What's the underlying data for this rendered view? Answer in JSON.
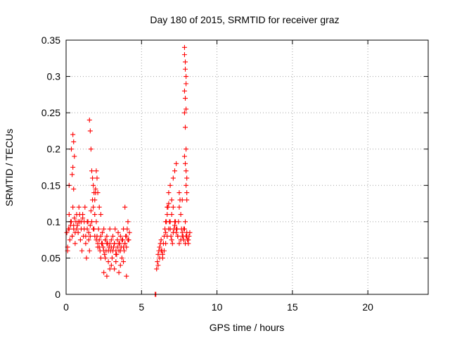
{
  "chart_data": {
    "type": "scatter",
    "title": "Day 180 of 2015, SRMTID for receiver graz",
    "xlabel": "GPS time / hours",
    "ylabel": "SRMTID / TECUs",
    "xlim": [
      0,
      24
    ],
    "ylim": [
      0,
      0.35
    ],
    "xticks": [
      0,
      5,
      10,
      15,
      20
    ],
    "xtick_labels": [
      "0",
      "5",
      "10",
      "15",
      "20"
    ],
    "yticks": [
      0,
      0.05,
      0.1,
      0.15,
      0.2,
      0.25,
      0.3,
      0.35
    ],
    "ytick_labels": [
      "0",
      "0.05",
      "0.1",
      "0.15",
      "0.2",
      "0.25",
      "0.3",
      "0.35"
    ],
    "grid": true,
    "marker": "plus",
    "color": "#ff0000",
    "series": [
      {
        "name": "SRMTID",
        "x": [
          0.05,
          0.1,
          0.15,
          0.2,
          0.25,
          0.3,
          0.35,
          0.4,
          0.45,
          0.5,
          0.55,
          0.6,
          0.65,
          0.7,
          0.75,
          0.8,
          0.85,
          0.9,
          0.95,
          1.0,
          1.05,
          1.1,
          1.15,
          1.2,
          1.25,
          1.3,
          1.35,
          1.4,
          1.45,
          1.5,
          1.55,
          1.6,
          1.65,
          1.7,
          1.75,
          1.8,
          1.85,
          1.9,
          1.95,
          2.0,
          2.05,
          2.1,
          2.15,
          2.2,
          2.25,
          2.3,
          2.35,
          2.4,
          2.45,
          2.5,
          2.55,
          2.6,
          2.65,
          2.7,
          2.75,
          2.8,
          2.85,
          2.9,
          2.95,
          3.0,
          3.05,
          3.1,
          3.15,
          3.2,
          3.25,
          3.3,
          3.35,
          3.4,
          3.45,
          3.5,
          3.55,
          3.6,
          3.65,
          3.7,
          3.75,
          3.8,
          3.85,
          3.9,
          3.95,
          4.0,
          4.05,
          4.1,
          4.15,
          4.2,
          0.1,
          0.2,
          0.3,
          0.4,
          0.5,
          0.6,
          0.7,
          0.8,
          0.9,
          1.0,
          1.1,
          1.2,
          1.3,
          1.4,
          1.5,
          1.6,
          1.7,
          1.8,
          1.9,
          2.0,
          2.1,
          2.2,
          2.3,
          2.4,
          2.5,
          2.6,
          2.7,
          2.8,
          2.9,
          3.0,
          3.1,
          3.2,
          3.3,
          3.4,
          3.5,
          3.6,
          3.7,
          3.8,
          3.9,
          4.0,
          4.1,
          0.2,
          0.35,
          0.45,
          0.5,
          0.55,
          1.55,
          1.6,
          1.65,
          1.7,
          1.75,
          1.8,
          1.85,
          1.9,
          1.95,
          2.0,
          2.05,
          2.1,
          2.2,
          2.3,
          0.4,
          0.45,
          0.5,
          2.5,
          2.7,
          3.0,
          3.2,
          3.5,
          3.8,
          4.0,
          2.6,
          2.9,
          3.3,
          3.6,
          3.9,
          5.9,
          5.95,
          6.0,
          6.05,
          6.1,
          6.15,
          6.2,
          6.25,
          6.3,
          6.35,
          6.4,
          6.45,
          6.5,
          6.55,
          6.6,
          6.65,
          6.7,
          6.75,
          6.8,
          6.85,
          6.9,
          6.95,
          7.0,
          7.05,
          7.1,
          7.15,
          7.2,
          7.25,
          7.3,
          7.35,
          7.4,
          7.45,
          7.5,
          7.55,
          7.6,
          7.65,
          7.7,
          7.75,
          7.8,
          7.85,
          7.9,
          7.95,
          8.0,
          8.05,
          8.1,
          8.15,
          8.2,
          6.1,
          6.2,
          6.3,
          6.4,
          6.5,
          6.6,
          6.7,
          6.8,
          6.9,
          7.0,
          7.1,
          7.2,
          7.3,
          7.4,
          7.5,
          7.6,
          7.7,
          7.8,
          7.9,
          8.0,
          8.1,
          6.6,
          6.7,
          6.8,
          6.9,
          7.0,
          7.1,
          7.2,
          7.3,
          7.5,
          7.7,
          7.85,
          7.85,
          7.9,
          7.9,
          7.95,
          7.95,
          7.85,
          7.9,
          7.95,
          7.85,
          7.9,
          7.95,
          7.85,
          7.9,
          7.95,
          8.0,
          7.95,
          8.0,
          8.0
        ],
        "y": [
          0.085,
          0.065,
          0.09,
          0.11,
          0.075,
          0.095,
          0.1,
          0.08,
          0.12,
          0.09,
          0.105,
          0.07,
          0.1,
          0.11,
          0.095,
          0.085,
          0.12,
          0.1,
          0.075,
          0.09,
          0.06,
          0.11,
          0.08,
          0.1,
          0.12,
          0.07,
          0.05,
          0.09,
          0.1,
          0.075,
          0.06,
          0.08,
          0.115,
          0.1,
          0.13,
          0.12,
          0.09,
          0.11,
          0.14,
          0.1,
          0.08,
          0.065,
          0.09,
          0.075,
          0.06,
          0.05,
          0.07,
          0.085,
          0.065,
          0.09,
          0.055,
          0.075,
          0.06,
          0.08,
          0.07,
          0.045,
          0.065,
          0.09,
          0.06,
          0.075,
          0.05,
          0.08,
          0.065,
          0.07,
          0.09,
          0.06,
          0.055,
          0.075,
          0.085,
          0.06,
          0.07,
          0.08,
          0.065,
          0.05,
          0.075,
          0.09,
          0.06,
          0.07,
          0.08,
          0.065,
          0.09,
          0.1,
          0.075,
          0.085,
          0.06,
          0.09,
          0.1,
          0.08,
          0.095,
          0.085,
          0.09,
          0.1,
          0.11,
          0.1,
          0.105,
          0.09,
          0.08,
          0.1,
          0.085,
          0.095,
          0.1,
          0.09,
          0.08,
          0.075,
          0.07,
          0.065,
          0.08,
          0.07,
          0.06,
          0.075,
          0.07,
          0.06,
          0.07,
          0.065,
          0.06,
          0.07,
          0.055,
          0.065,
          0.07,
          0.06,
          0.075,
          0.065,
          0.07,
          0.08,
          0.075,
          0.15,
          0.2,
          0.22,
          0.21,
          0.19,
          0.24,
          0.225,
          0.2,
          0.17,
          0.16,
          0.15,
          0.14,
          0.13,
          0.145,
          0.17,
          0.16,
          0.14,
          0.12,
          0.11,
          0.165,
          0.175,
          0.145,
          0.03,
          0.025,
          0.04,
          0.035,
          0.03,
          0.045,
          0.025,
          0.05,
          0.035,
          0.045,
          0.04,
          0.12,
          0.0,
          0.0,
          0.035,
          0.045,
          0.055,
          0.06,
          0.065,
          0.07,
          0.075,
          0.06,
          0.055,
          0.07,
          0.08,
          0.09,
          0.085,
          0.1,
          0.11,
          0.12,
          0.125,
          0.1,
          0.09,
          0.08,
          0.075,
          0.07,
          0.085,
          0.09,
          0.095,
          0.1,
          0.085,
          0.09,
          0.08,
          0.1,
          0.12,
          0.13,
          0.11,
          0.09,
          0.085,
          0.08,
          0.075,
          0.09,
          0.1,
          0.08,
          0.085,
          0.075,
          0.07,
          0.08,
          0.085,
          0.04,
          0.05,
          0.06,
          0.05,
          0.06,
          0.07,
          0.08,
          0.09,
          0.1,
          0.11,
          0.12,
          0.1,
          0.09,
          0.08,
          0.07,
          0.075,
          0.08,
          0.09,
          0.07,
          0.08,
          0.075,
          0.1,
          0.12,
          0.14,
          0.15,
          0.13,
          0.16,
          0.17,
          0.18,
          0.14,
          0.13,
          0.34,
          0.33,
          0.32,
          0.31,
          0.3,
          0.29,
          0.28,
          0.27,
          0.255,
          0.25,
          0.23,
          0.2,
          0.19,
          0.18,
          0.17,
          0.16,
          0.15,
          0.14,
          0.13
        ]
      }
    ]
  }
}
